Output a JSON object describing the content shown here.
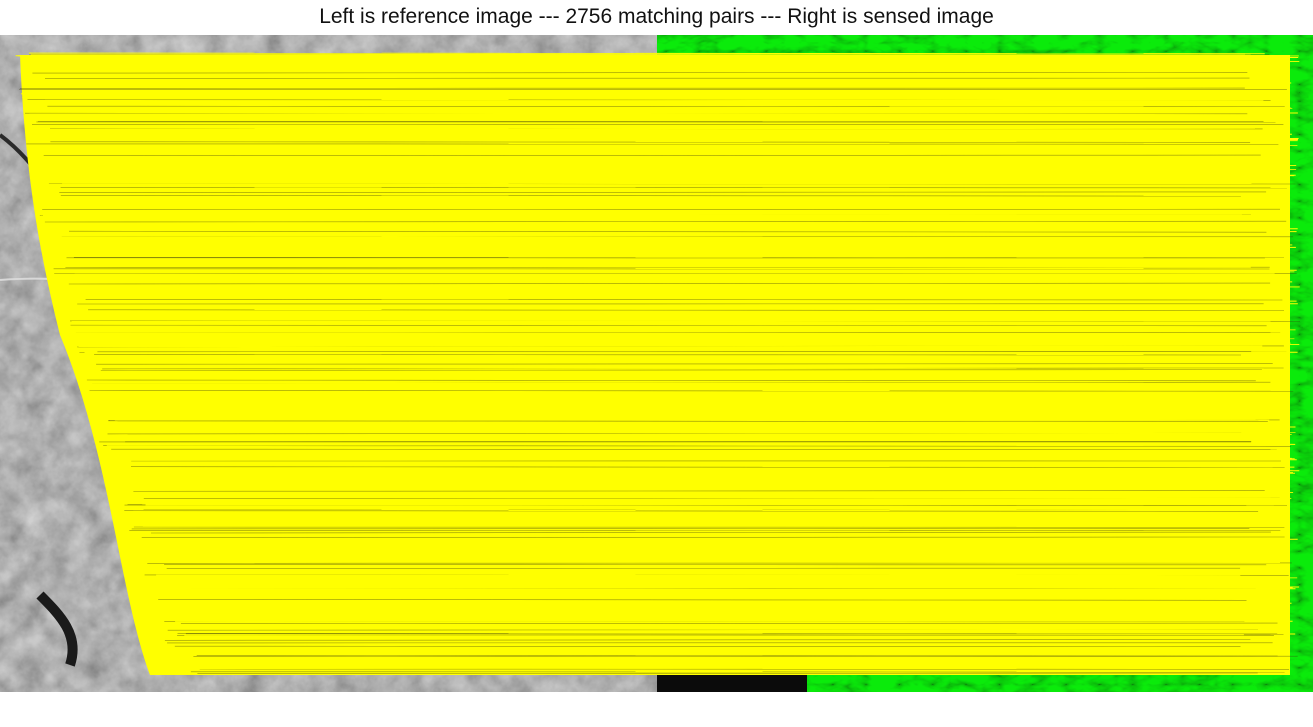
{
  "figure": {
    "title": "Left is reference image --- 2756 matching pairs --- Right is sensed image",
    "match_count": 2756
  },
  "images": {
    "reference": {
      "description": "grayscale aerial image",
      "side": "left"
    },
    "sensed": {
      "description": "green-tinted terrain image",
      "side": "right"
    }
  },
  "colors": {
    "match_line": "#ffff00",
    "reference_tone": "#6e6e6e",
    "sensed_tone": "#19d419",
    "background": "#ffffff"
  }
}
